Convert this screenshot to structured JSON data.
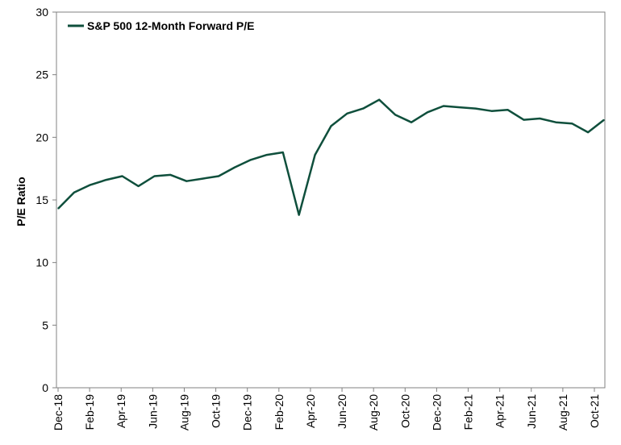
{
  "chart_data": {
    "type": "line",
    "title": "",
    "xlabel": "",
    "ylabel": "P/E Ratio",
    "ylim": [
      0,
      30
    ],
    "yticks": [
      0,
      5,
      10,
      15,
      20,
      25,
      30
    ],
    "x_tick_labels": [
      "Dec-18",
      "Feb-19",
      "Apr-19",
      "Jun-19",
      "Aug-19",
      "Oct-19",
      "Dec-19",
      "Feb-20",
      "Apr-20",
      "Jun-20",
      "Aug-20",
      "Oct-20",
      "Dec-20",
      "Feb-21",
      "Apr-21",
      "Jun-21",
      "Aug-21",
      "Oct-21"
    ],
    "grid": false,
    "legend_position": "top-left",
    "series": [
      {
        "name": "S&P 500 12-Month Forward P/E",
        "color": "#0f4f3c",
        "x": [
          "Dec-18",
          "Jan-19",
          "Feb-19",
          "Mar-19",
          "Apr-19",
          "May-19",
          "Jun-19",
          "Jul-19",
          "Aug-19",
          "Sep-19",
          "Oct-19",
          "Nov-19",
          "Dec-19",
          "Jan-20",
          "Feb-20",
          "Mar-20",
          "Apr-20",
          "May-20",
          "Jun-20",
          "Jul-20",
          "Aug-20",
          "Sep-20",
          "Oct-20",
          "Nov-20",
          "Dec-20",
          "Jan-21",
          "Feb-21",
          "Mar-21",
          "Apr-21",
          "May-21",
          "Jun-21",
          "Jul-21",
          "Aug-21",
          "Sep-21",
          "Oct-21"
        ],
        "values": [
          14.3,
          15.6,
          16.2,
          16.6,
          16.9,
          16.1,
          16.9,
          17.0,
          16.5,
          16.7,
          16.9,
          17.6,
          18.2,
          18.6,
          18.8,
          13.8,
          18.6,
          20.9,
          21.9,
          22.3,
          23.0,
          21.8,
          21.2,
          22.0,
          22.5,
          22.4,
          22.3,
          22.1,
          22.2,
          21.4,
          21.5,
          21.2,
          21.1,
          20.4,
          21.4
        ]
      }
    ]
  }
}
